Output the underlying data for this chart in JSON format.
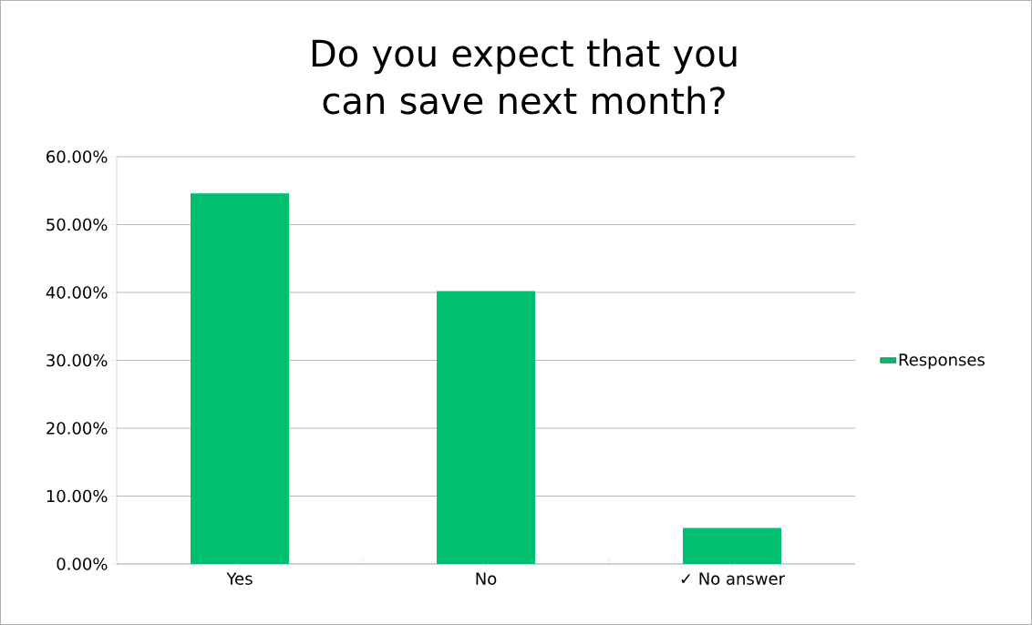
{
  "chart_data": {
    "type": "bar",
    "title": "Do you expect that you can save next month?",
    "categories": [
      "Yes",
      "No",
      "✓ No answer"
    ],
    "series": [
      {
        "name": "Responses",
        "color": "#00bf6f",
        "values": [
          54.6,
          40.2,
          5.3
        ]
      }
    ],
    "ylim": [
      0,
      60
    ],
    "yticks": [
      {
        "value": 0,
        "label": "0.00%"
      },
      {
        "value": 10,
        "label": "10.00%"
      },
      {
        "value": 20,
        "label": "20.00%"
      },
      {
        "value": 30,
        "label": "30.00%"
      },
      {
        "value": 40,
        "label": "40.00%"
      },
      {
        "value": 50,
        "label": "50.00%"
      },
      {
        "value": 60,
        "label": "60.00%"
      }
    ],
    "grid": "y",
    "legend": "right"
  }
}
